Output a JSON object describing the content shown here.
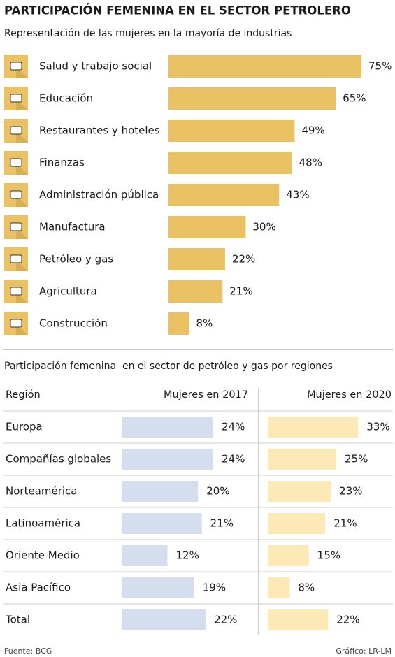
{
  "title": "PARTICIPACIÓN FEMENINA EN EL SECTOR PETROLERO",
  "chart_data": [
    {
      "type": "bar",
      "orientation": "horizontal",
      "subtitle": "Representación de las mujeres en la mayoría de industrias",
      "categories": [
        "Salud y trabajo social",
        "Educación",
        "Restaurantes y hoteles",
        "Finanzas",
        "Administración pública",
        "Manufactura",
        "Petróleo y gas",
        "Agricultura",
        "Construcción"
      ],
      "values": [
        75,
        65,
        49,
        48,
        43,
        30,
        22,
        21,
        8
      ],
      "value_labels": [
        "75%",
        "65%",
        "49%",
        "48%",
        "43%",
        "30%",
        "22%",
        "21%",
        "8%"
      ],
      "color": "#ebc263"
    },
    {
      "type": "bar",
      "orientation": "horizontal",
      "subtitle": "Participación femenina  en el sector de petróleo y gas por regiones",
      "category_label": "Región",
      "categories": [
        "Europa",
        "Compañías globales",
        "Norteamérica",
        "Latinoamérica",
        "Oriente Medio",
        "Asia Pacífico",
        "Total"
      ],
      "series": [
        {
          "name": "Mujeres en 2017",
          "color": "#d4deef",
          "values": [
            24,
            24,
            20,
            21,
            12,
            19,
            22
          ],
          "value_labels": [
            "24%",
            "24%",
            "20%",
            "21%",
            "12%",
            "19%",
            "22%"
          ]
        },
        {
          "name": "Mujeres en 2020",
          "color": "#fde9b6",
          "values": [
            33,
            25,
            23,
            21,
            15,
            8,
            22
          ],
          "value_labels": [
            "33%",
            "25%",
            "23%",
            "21%",
            "15%",
            "8%",
            "22%"
          ]
        }
      ]
    }
  ],
  "source": "Fuente: BCG",
  "credit": "Gráfico: LR-LM"
}
